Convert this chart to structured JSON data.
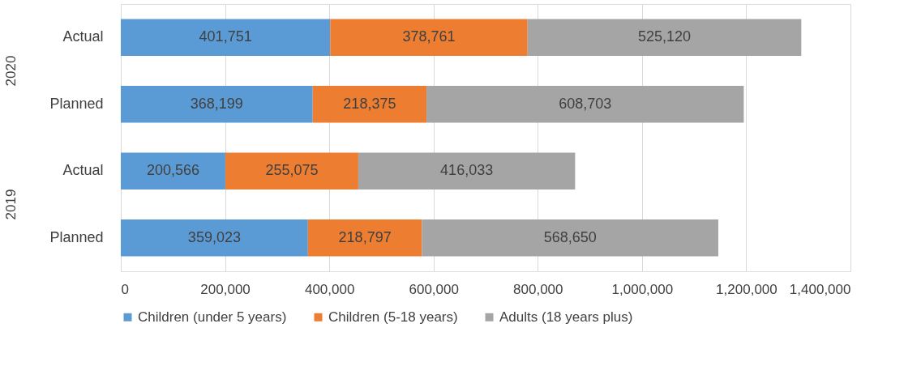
{
  "chart_data": {
    "type": "bar",
    "orientation": "horizontal",
    "stacked": true,
    "categories": [
      "Actual",
      "Planned",
      "Actual",
      "Planned"
    ],
    "series": [
      {
        "name": "Children (under 5 years)",
        "color": "#5b9bd5",
        "values": [
          401751,
          368199,
          200566,
          359023
        ],
        "value_labels": [
          "401,751",
          "368,199",
          "200,566",
          "359,023"
        ]
      },
      {
        "name": "Children (5-18 years)",
        "color": "#ed7d31",
        "values": [
          378761,
          218375,
          255075,
          218797
        ],
        "value_labels": [
          "378,761",
          "218,375",
          "255,075",
          "218,797"
        ]
      },
      {
        "name": "Adults (18 years plus)",
        "color": "#a5a5a5",
        "values": [
          525120,
          608703,
          416033,
          568650
        ],
        "value_labels": [
          "525,120",
          "608,703",
          "416,033",
          "568,650"
        ]
      }
    ],
    "annotations": [
      "2020",
      "2019"
    ],
    "xlim": [
      0,
      1400000
    ],
    "xticks": [
      {
        "value": 0,
        "label": "0"
      },
      {
        "value": 200000,
        "label": "200,000"
      },
      {
        "value": 400000,
        "label": "400,000"
      },
      {
        "value": 600000,
        "label": "600,000"
      },
      {
        "value": 800000,
        "label": "800,000"
      },
      {
        "value": 1000000,
        "label": "1,000,000"
      },
      {
        "value": 1200000,
        "label": "1,200,000"
      },
      {
        "value": 1400000,
        "label": "1,400,000"
      }
    ],
    "grid": "x",
    "legend": "bottom"
  }
}
